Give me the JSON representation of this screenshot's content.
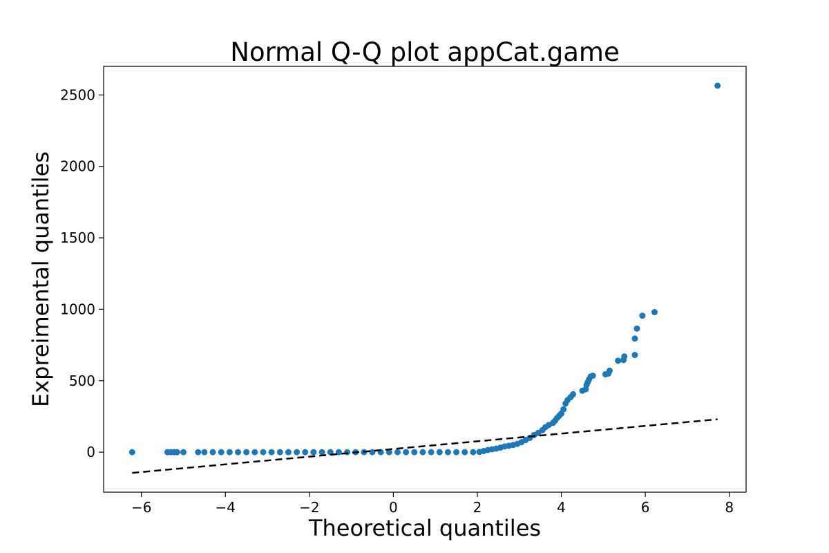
{
  "chart_data": {
    "type": "scatter",
    "title": "Normal Q-Q plot appCat.game",
    "xlabel": "Theoretical quantiles",
    "ylabel": "Expreimental quantiles",
    "xlim": [
      -6.9,
      8.4
    ],
    "ylim": [
      -280,
      2700
    ],
    "xticks": [
      -6,
      -4,
      -2,
      0,
      2,
      4,
      6,
      8
    ],
    "xtick_labels": [
      "−6",
      "−4",
      "−2",
      "0",
      "2",
      "4",
      "6",
      "8"
    ],
    "yticks": [
      0,
      500,
      1000,
      1500,
      2000,
      2500
    ],
    "ytick_labels": [
      "0",
      "500",
      "1000",
      "1500",
      "2000",
      "2500"
    ],
    "grid": false,
    "point_color": "#1f77b4",
    "series": [
      {
        "values": [
          [
            -6.22,
            0
          ],
          [
            -5.38,
            0
          ],
          [
            -5.3,
            0
          ],
          [
            -5.22,
            0
          ],
          [
            -5.15,
            0
          ],
          [
            -5.0,
            0
          ],
          [
            -4.65,
            0
          ],
          [
            -4.5,
            0
          ],
          [
            -4.3,
            0
          ],
          [
            -4.1,
            0
          ],
          [
            -3.9,
            0
          ],
          [
            -3.7,
            0
          ],
          [
            -3.5,
            0
          ],
          [
            -3.3,
            0
          ],
          [
            -3.1,
            0
          ],
          [
            -2.9,
            0
          ],
          [
            -2.7,
            0
          ],
          [
            -2.5,
            0
          ],
          [
            -2.3,
            0
          ],
          [
            -2.1,
            0
          ],
          [
            -1.9,
            0
          ],
          [
            -1.7,
            0
          ],
          [
            -1.5,
            0
          ],
          [
            -1.3,
            0
          ],
          [
            -1.1,
            0
          ],
          [
            -0.9,
            0
          ],
          [
            -0.7,
            0
          ],
          [
            -0.5,
            0
          ],
          [
            -0.3,
            0
          ],
          [
            -0.1,
            0
          ],
          [
            0.1,
            0
          ],
          [
            0.3,
            0
          ],
          [
            0.5,
            0
          ],
          [
            0.7,
            0
          ],
          [
            0.9,
            0
          ],
          [
            1.1,
            0
          ],
          [
            1.3,
            0
          ],
          [
            1.5,
            0
          ],
          [
            1.7,
            0
          ],
          [
            1.9,
            0
          ],
          [
            2.05,
            2
          ],
          [
            2.15,
            8
          ],
          [
            2.25,
            15
          ],
          [
            2.35,
            20
          ],
          [
            2.45,
            25
          ],
          [
            2.55,
            32
          ],
          [
            2.65,
            40
          ],
          [
            2.75,
            45
          ],
          [
            2.85,
            50
          ],
          [
            2.95,
            58
          ],
          [
            3.05,
            70
          ],
          [
            3.15,
            85
          ],
          [
            3.25,
            100
          ],
          [
            3.35,
            120
          ],
          [
            3.45,
            135
          ],
          [
            3.55,
            155
          ],
          [
            3.62,
            175
          ],
          [
            3.7,
            190
          ],
          [
            3.8,
            205
          ],
          [
            3.85,
            220
          ],
          [
            3.9,
            240
          ],
          [
            3.95,
            255
          ],
          [
            4.0,
            270
          ],
          [
            4.05,
            300
          ],
          [
            4.1,
            340
          ],
          [
            4.15,
            365
          ],
          [
            4.22,
            385
          ],
          [
            4.28,
            405
          ],
          [
            4.5,
            430
          ],
          [
            4.58,
            440
          ],
          [
            4.6,
            470
          ],
          [
            4.63,
            490
          ],
          [
            4.66,
            510
          ],
          [
            4.7,
            530
          ],
          [
            4.75,
            535
          ],
          [
            5.05,
            545
          ],
          [
            5.12,
            550
          ],
          [
            5.15,
            570
          ],
          [
            5.35,
            640
          ],
          [
            5.48,
            645
          ],
          [
            5.5,
            670
          ],
          [
            5.75,
            680
          ],
          [
            5.75,
            795
          ],
          [
            5.8,
            865
          ],
          [
            5.93,
            955
          ],
          [
            6.22,
            980
          ],
          [
            7.72,
            2565
          ]
        ]
      }
    ],
    "reference_line": {
      "x": [
        -6.22,
        7.72
      ],
      "y": [
        -145,
        230
      ],
      "style": "dashed",
      "color": "#000000"
    }
  }
}
